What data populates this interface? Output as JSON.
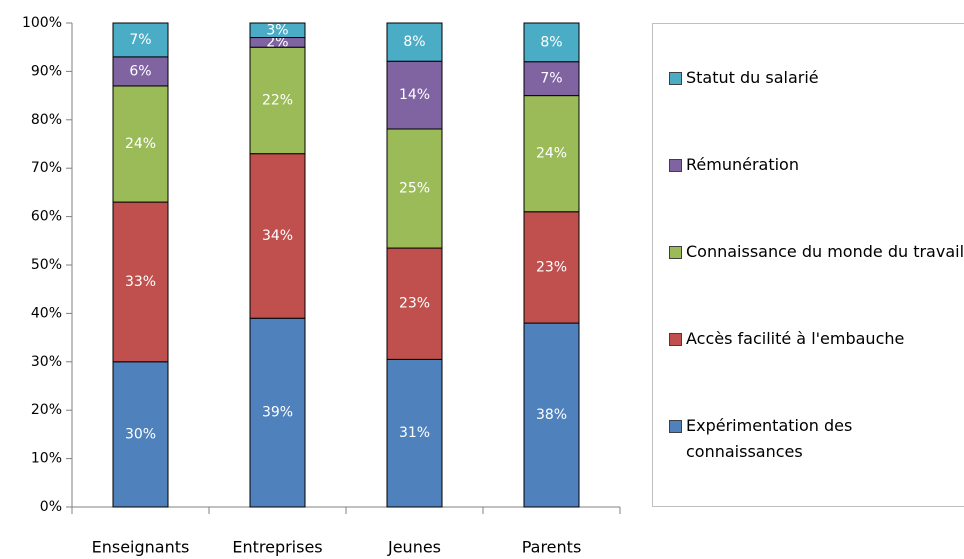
{
  "chart_data": {
    "type": "stacked_bar",
    "categories": [
      "Enseignants",
      "Entreprises",
      "Jeunes",
      "Parents"
    ],
    "series": [
      {
        "name": "Expérimentation des connaissances",
        "color": "#4f81bd",
        "values": [
          30,
          39,
          30.5,
          38
        ],
        "value_labels": [
          "30%",
          "39%",
          "31%",
          "38%"
        ]
      },
      {
        "name": "Accès facilité à l'embauche",
        "color": "#c0504d",
        "values": [
          33,
          34,
          23,
          23
        ],
        "value_labels": [
          "33%",
          "34%",
          "23%",
          "23%"
        ]
      },
      {
        "name": "Connaissance du monde du travail",
        "color": "#9bbb59",
        "values": [
          24,
          22,
          24.6,
          24
        ],
        "value_labels": [
          "24%",
          "22%",
          "25%",
          "24%"
        ]
      },
      {
        "name": "Rémunération",
        "color": "#8064a2",
        "values": [
          6,
          2,
          14,
          7
        ],
        "value_labels": [
          "6%",
          "2%",
          "14%",
          "7%"
        ]
      },
      {
        "name": "Statut du salarié",
        "color": "#4bacc6",
        "values": [
          7,
          3,
          7.9,
          8
        ],
        "value_labels": [
          "7%",
          "3%",
          "8%",
          "8%"
        ]
      }
    ],
    "ylim": [
      0,
      100
    ],
    "yticks": [
      {
        "value": 0,
        "label": "0%"
      },
      {
        "value": 10,
        "label": "10%"
      },
      {
        "value": 20,
        "label": "20%"
      },
      {
        "value": 30,
        "label": "30%"
      },
      {
        "value": 40,
        "label": "40%"
      },
      {
        "value": 50,
        "label": "50%"
      },
      {
        "value": 60,
        "label": "60%"
      },
      {
        "value": 70,
        "label": "70%"
      },
      {
        "value": 80,
        "label": "80%"
      },
      {
        "value": 90,
        "label": "90%"
      },
      {
        "value": 100,
        "label": "100%"
      }
    ],
    "grid": false,
    "legend": "right"
  }
}
